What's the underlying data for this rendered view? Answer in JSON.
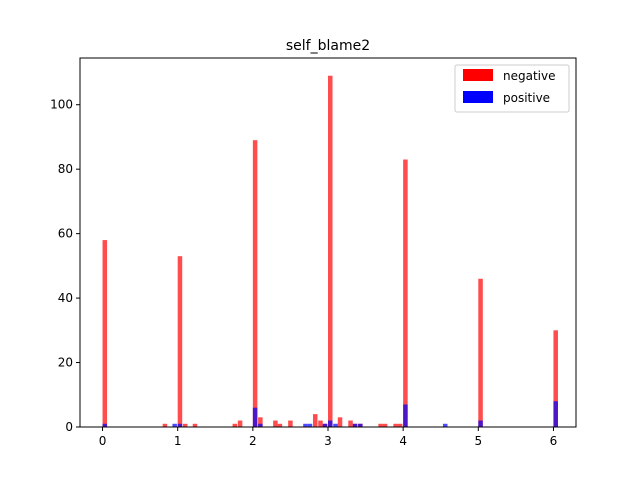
{
  "chart_data": {
    "type": "bar",
    "title": "self_blame2",
    "xlabel": "",
    "ylabel": "",
    "xlim": [
      -0.3,
      6.3
    ],
    "ylim": [
      0,
      114.5
    ],
    "xticks": [
      0,
      1,
      2,
      3,
      4,
      5,
      6
    ],
    "yticks": [
      0,
      20,
      40,
      60,
      80,
      100
    ],
    "bin_width": 0.06,
    "legend": {
      "position": "top-right"
    },
    "colors": {
      "negative": "#ff0000",
      "positive": "#0000ff",
      "overlap": "#7f3fbf"
    },
    "series": [
      {
        "name": "negative",
        "color": "#ff0000",
        "alpha": 0.7,
        "x": [
          0.0,
          0.8,
          1.0,
          1.07,
          1.2,
          1.73,
          1.8,
          2.0,
          2.07,
          2.27,
          2.33,
          2.47,
          2.8,
          2.87,
          2.93,
          3.0,
          3.13,
          3.27,
          3.33,
          3.4,
          3.67,
          3.73,
          3.87,
          3.93,
          4.0,
          5.0,
          6.0
        ],
        "values": [
          58,
          1,
          53,
          1,
          1,
          1,
          2,
          89,
          3,
          2,
          1,
          2,
          4,
          2,
          1,
          109,
          3,
          2,
          1,
          1,
          1,
          1,
          1,
          1,
          83,
          46,
          30
        ]
      },
      {
        "name": "positive",
        "color": "#0000ff",
        "alpha": 0.7,
        "x": [
          0.0,
          0.93,
          1.0,
          2.0,
          2.07,
          2.67,
          2.73,
          2.93,
          3.0,
          3.07,
          3.33,
          3.4,
          4.0,
          4.53,
          5.0,
          6.0
        ],
        "values": [
          1,
          1,
          1,
          6,
          1,
          1,
          1,
          1,
          2,
          1,
          1,
          1,
          7,
          1,
          2,
          8
        ]
      }
    ]
  }
}
